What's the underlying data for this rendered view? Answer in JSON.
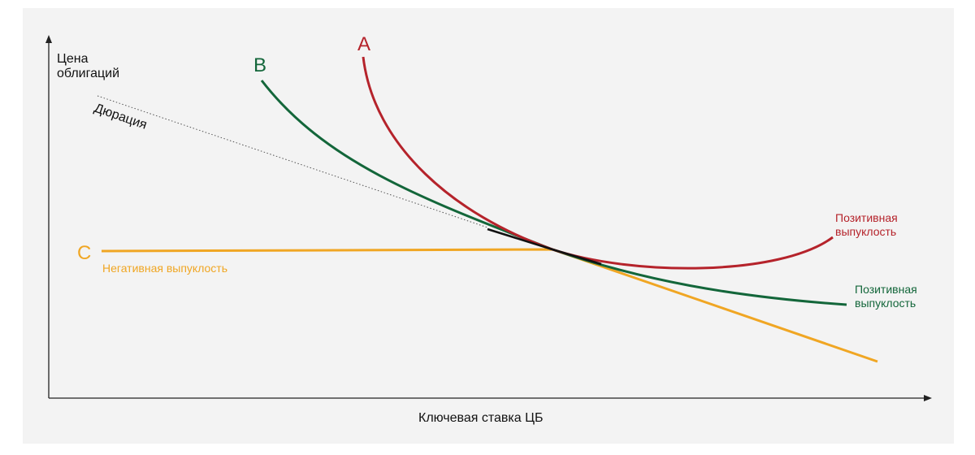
{
  "axes": {
    "y_label_line1": "Цена",
    "y_label_line2": "облигаций",
    "x_label": "Ключевая ставка ЦБ"
  },
  "duration": {
    "label": "Дюрация"
  },
  "curves": {
    "a": {
      "letter": "A",
      "note_line1": "Позитивная",
      "note_line2": "выпуклость",
      "color": "#b5232b"
    },
    "b": {
      "letter": "B",
      "note_line1": "Позитивная",
      "note_line2": "выпуклость",
      "color": "#13663a"
    },
    "c": {
      "letter": "C",
      "note": "Негативная выпуклость",
      "color": "#f0a623"
    }
  }
}
